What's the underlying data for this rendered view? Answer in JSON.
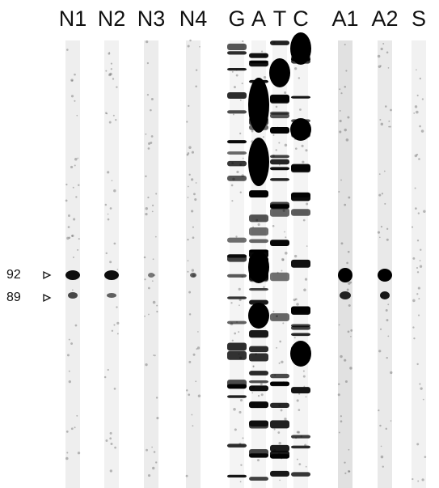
{
  "lanes": [
    "N1",
    "N2",
    "N3",
    "N4",
    "G",
    "A",
    "T",
    "C",
    "A1",
    "A2",
    "S"
  ],
  "markers": [
    "92",
    "89"
  ]
}
